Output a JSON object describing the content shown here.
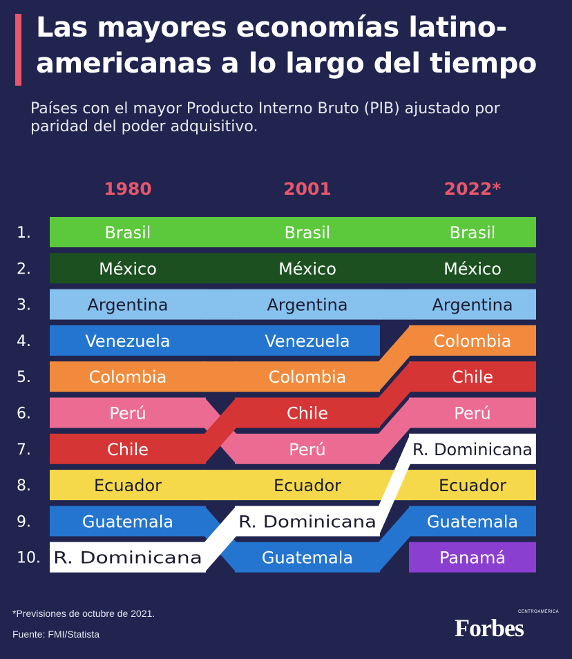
{
  "header": {
    "title_line1": "Las mayores economías latino-",
    "title_line2": "americanas a lo largo del tiempo",
    "subtitle_line1": "Países con el mayor Producto Interno Bruto (PIB) ajustado por",
    "subtitle_line2": "paridad del poder adquisitivo."
  },
  "footer": {
    "note": "*Previsiones de octubre de 2021.",
    "source": "Fuente: FMI/Statista",
    "logo_text": "Forbes",
    "logo_subtext": "CENTROAMÉRICA"
  },
  "chart_data": {
    "type": "bump",
    "title": "Las mayores economías latinoamericanas a lo largo del tiempo",
    "years": [
      "1980",
      "2001",
      "2022*"
    ],
    "ranks": [
      "1.",
      "2.",
      "3.",
      "4.",
      "5.",
      "6.",
      "7.",
      "8.",
      "9.",
      "10."
    ],
    "series": [
      {
        "name": "Brasil",
        "ranks": [
          1,
          1,
          1
        ],
        "color": "#5cc83b",
        "text_color": "#ffffff"
      },
      {
        "name": "México",
        "ranks": [
          2,
          2,
          2
        ],
        "color": "#1c5020",
        "text_color": "#ffffff"
      },
      {
        "name": "Argentina",
        "ranks": [
          3,
          3,
          3
        ],
        "color": "#87c1ee",
        "text_color": "#1c1c30"
      },
      {
        "name": "Venezuela",
        "ranks": [
          4,
          4,
          null
        ],
        "color": "#2475cf",
        "text_color": "#ffffff"
      },
      {
        "name": "Colombia",
        "ranks": [
          5,
          5,
          4
        ],
        "color": "#f18a3c",
        "text_color": "#ffffff"
      },
      {
        "name": "Perú",
        "ranks": [
          6,
          7,
          6
        ],
        "color": "#ec6b93",
        "text_color": "#ffffff"
      },
      {
        "name": "Chile",
        "ranks": [
          7,
          6,
          5
        ],
        "color": "#d63535",
        "text_color": "#ffffff"
      },
      {
        "name": "Ecuador",
        "ranks": [
          8,
          8,
          8
        ],
        "color": "#f5d94a",
        "text_color": "#1c1c30"
      },
      {
        "name": "Guatemala",
        "ranks": [
          9,
          10,
          9
        ],
        "color": "#2475cf",
        "text_color": "#ffffff"
      },
      {
        "name": "R. Dominicana",
        "ranks": [
          10,
          9,
          7
        ],
        "color": "#ffffff",
        "text_color": "#1c1c30"
      },
      {
        "name": "Panamá",
        "ranks": [
          null,
          null,
          10
        ],
        "color": "#8a3fd1",
        "text_color": "#ffffff"
      }
    ],
    "year_label_color": "#e8566b"
  }
}
